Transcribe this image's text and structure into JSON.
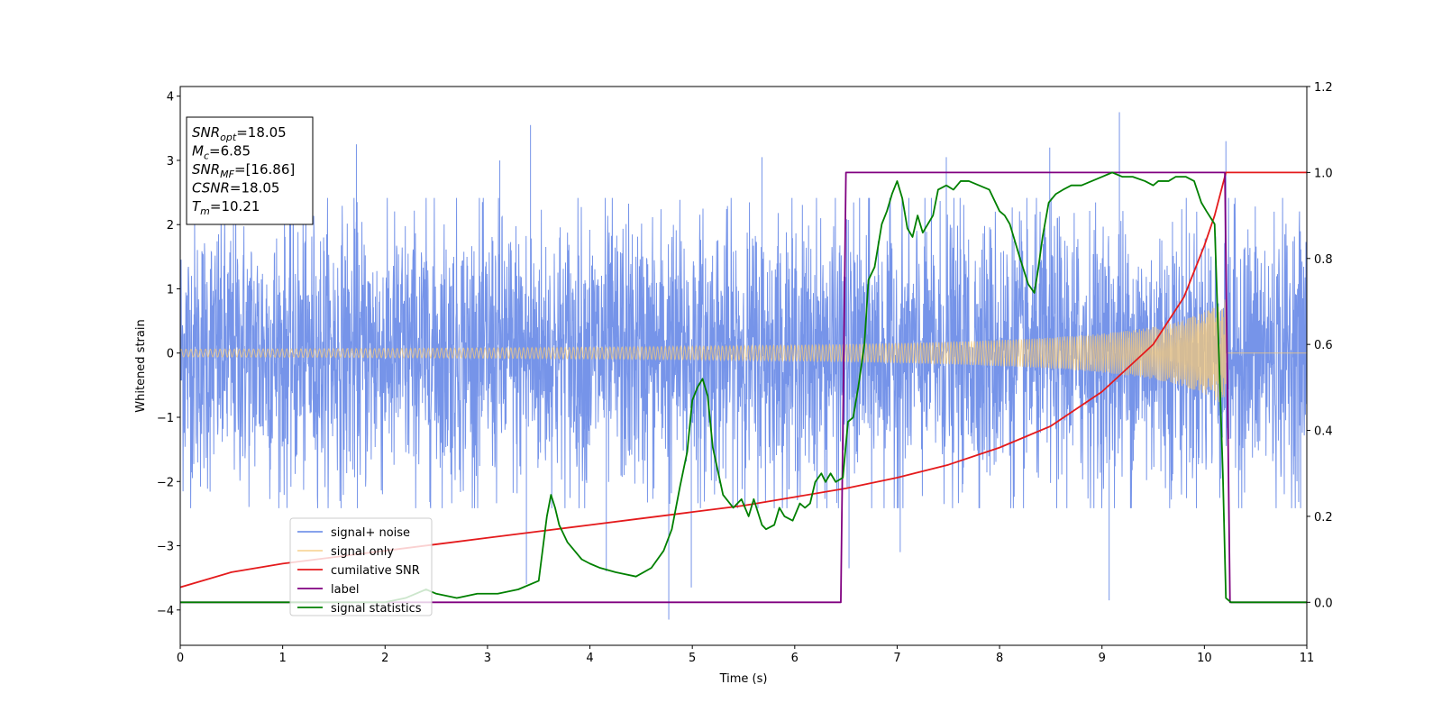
{
  "chart_data": {
    "type": "line",
    "xlabel": "Time (s)",
    "ylabel": "Whitened strain",
    "y2label": "",
    "xlim": [
      0,
      11
    ],
    "ylim": [
      -4.55,
      4.15
    ],
    "y2lim": [
      -0.1,
      1.2
    ],
    "xticks": [
      "0",
      "1",
      "2",
      "3",
      "4",
      "5",
      "6",
      "7",
      "8",
      "9",
      "10",
      "11"
    ],
    "yticks": [
      "−4",
      "−3",
      "−2",
      "−1",
      "0",
      "1",
      "2",
      "3",
      "4"
    ],
    "y2ticks": [
      "0.0",
      "0.2",
      "0.4",
      "0.6",
      "0.8",
      "1.0",
      "1.2"
    ],
    "legend": {
      "position": "lower-left",
      "entries": [
        "signal+ noise",
        "signal only",
        "cumilative SNR",
        "label",
        "signal statistics"
      ]
    },
    "info_box": {
      "position": "top-left",
      "lines": [
        {
          "base": "SNR",
          "sub": "opt",
          "value": "=18.05"
        },
        {
          "base": "M",
          "sub": "c",
          "value": "=6.85"
        },
        {
          "base": "SNR",
          "sub": "MF",
          "value": "=[16.86]"
        },
        {
          "base": "CSNR",
          "sub": "",
          "value": "=18.05"
        },
        {
          "base": "T",
          "sub": "m",
          "value": "=10.21"
        }
      ]
    },
    "colors": {
      "signal_noise": "#6f8ee8",
      "signal_only": "#f5c97a",
      "cumulative_snr": "#e41a1c",
      "label": "#800080",
      "signal_statistics": "#008000"
    },
    "series": [
      {
        "name": "signal+ noise",
        "axis": "left",
        "kind": "noise-band",
        "t_range": [
          0,
          11
        ],
        "typical_abs_max": 2.3,
        "outliers": [
          [
            3.42,
            3.55
          ],
          [
            4.77,
            -4.15
          ],
          [
            9.17,
            3.75
          ],
          [
            10.21,
            3.3
          ],
          [
            1.72,
            3.25
          ],
          [
            3.12,
            3.0
          ],
          [
            5.68,
            3.05
          ],
          [
            7.48,
            3.05
          ],
          [
            8.49,
            3.2
          ],
          [
            3.38,
            -3.6
          ],
          [
            4.16,
            -3.4
          ],
          [
            4.99,
            -3.65
          ],
          [
            6.53,
            -3.35
          ],
          [
            9.07,
            -3.85
          ],
          [
            7.03,
            -3.1
          ]
        ]
      },
      {
        "name": "signal only",
        "axis": "left",
        "kind": "chirp",
        "t_range": [
          0,
          10.21
        ],
        "amplitude_start": 0.06,
        "amplitude_end": 1.15
      },
      {
        "name": "cumilative SNR",
        "axis": "right",
        "x": [
          0,
          0.5,
          1,
          1.5,
          2,
          2.5,
          3,
          3.5,
          4,
          4.5,
          5,
          5.5,
          6,
          6.5,
          7,
          7.5,
          8,
          8.5,
          9,
          9.5,
          9.8,
          10,
          10.1,
          10.21,
          11
        ],
        "values": [
          0.035,
          0.07,
          0.09,
          0.105,
          0.12,
          0.135,
          0.15,
          0.165,
          0.18,
          0.195,
          0.21,
          0.225,
          0.245,
          0.265,
          0.29,
          0.32,
          0.36,
          0.41,
          0.49,
          0.6,
          0.71,
          0.83,
          0.9,
          1.0,
          1.0
        ]
      },
      {
        "name": "label",
        "axis": "right",
        "x": [
          0,
          6.45,
          6.5,
          10.2,
          10.25,
          11
        ],
        "values": [
          0,
          0,
          1,
          1,
          0,
          0
        ]
      },
      {
        "name": "signal statistics",
        "axis": "right",
        "x": [
          0,
          1,
          2,
          2.2,
          2.4,
          2.5,
          2.7,
          2.9,
          3.1,
          3.3,
          3.5,
          3.58,
          3.62,
          3.66,
          3.7,
          3.78,
          3.85,
          3.92,
          4.0,
          4.1,
          4.25,
          4.45,
          4.6,
          4.72,
          4.8,
          4.88,
          4.95,
          5.0,
          5.05,
          5.1,
          5.15,
          5.2,
          5.3,
          5.4,
          5.48,
          5.55,
          5.6,
          5.68,
          5.72,
          5.8,
          5.85,
          5.9,
          5.98,
          6.05,
          6.1,
          6.15,
          6.2,
          6.26,
          6.3,
          6.35,
          6.4,
          6.47,
          6.52,
          6.57,
          6.62,
          6.68,
          6.72,
          6.78,
          6.85,
          6.9,
          6.95,
          7.0,
          7.05,
          7.1,
          7.15,
          7.2,
          7.25,
          7.3,
          7.35,
          7.4,
          7.48,
          7.55,
          7.62,
          7.7,
          7.8,
          7.9,
          8.0,
          8.05,
          8.1,
          8.2,
          8.28,
          8.34,
          8.38,
          8.42,
          8.48,
          8.55,
          8.62,
          8.7,
          8.8,
          8.9,
          9.0,
          9.1,
          9.2,
          9.3,
          9.42,
          9.5,
          9.55,
          9.65,
          9.72,
          9.82,
          9.9,
          9.97,
          10.02,
          10.1,
          10.18,
          10.21,
          10.26,
          11
        ],
        "values": [
          0.0,
          0.0,
          0.0,
          0.01,
          0.03,
          0.02,
          0.01,
          0.02,
          0.02,
          0.03,
          0.05,
          0.2,
          0.25,
          0.22,
          0.18,
          0.14,
          0.12,
          0.1,
          0.09,
          0.08,
          0.07,
          0.06,
          0.08,
          0.12,
          0.17,
          0.27,
          0.35,
          0.47,
          0.5,
          0.52,
          0.48,
          0.36,
          0.25,
          0.22,
          0.24,
          0.2,
          0.24,
          0.18,
          0.17,
          0.18,
          0.22,
          0.2,
          0.19,
          0.23,
          0.22,
          0.23,
          0.28,
          0.3,
          0.28,
          0.3,
          0.28,
          0.29,
          0.42,
          0.43,
          0.5,
          0.6,
          0.75,
          0.78,
          0.88,
          0.91,
          0.95,
          0.98,
          0.94,
          0.87,
          0.85,
          0.9,
          0.86,
          0.88,
          0.9,
          0.96,
          0.97,
          0.96,
          0.98,
          0.98,
          0.97,
          0.96,
          0.91,
          0.9,
          0.88,
          0.8,
          0.74,
          0.72,
          0.78,
          0.85,
          0.93,
          0.95,
          0.96,
          0.97,
          0.97,
          0.98,
          0.99,
          1.0,
          0.99,
          0.99,
          0.98,
          0.97,
          0.98,
          0.98,
          0.99,
          0.99,
          0.98,
          0.93,
          0.91,
          0.88,
          0.3,
          0.01,
          0.0,
          0.0
        ]
      }
    ]
  }
}
